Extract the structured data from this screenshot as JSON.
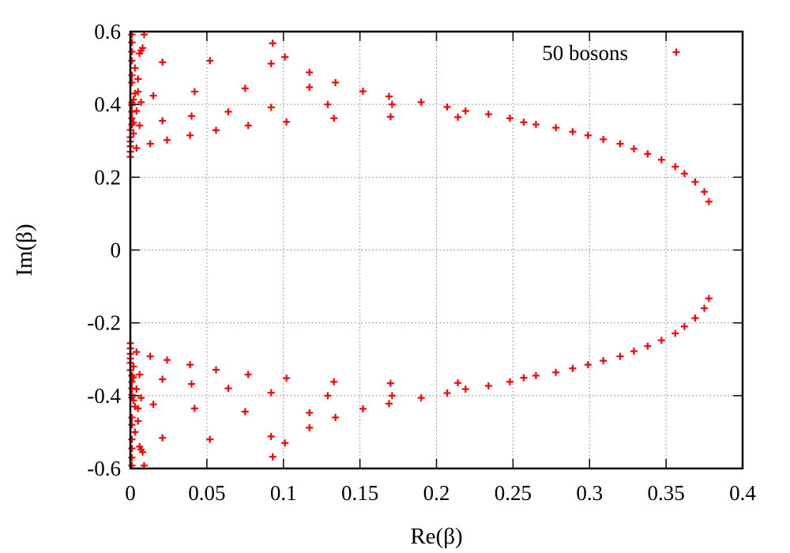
{
  "chart_data": {
    "type": "scatter",
    "xlabel": "Re(β)",
    "ylabel": "Im(β)",
    "xlim": [
      0,
      0.4
    ],
    "ylim": [
      -0.6,
      0.6
    ],
    "x_ticks": [
      "0",
      "0.05",
      "0.1",
      "0.15",
      "0.2",
      "0.25",
      "0.3",
      "0.35",
      "0.4"
    ],
    "x_tick_values": [
      0,
      0.05,
      0.1,
      0.15,
      0.2,
      0.25,
      0.3,
      0.35,
      0.4
    ],
    "y_ticks": [
      "-0.6",
      "-0.4",
      "-0.2",
      "0",
      "0.2",
      "0.4",
      "0.6"
    ],
    "y_tick_values": [
      -0.6,
      -0.4,
      -0.2,
      0,
      0.2,
      0.4,
      0.6
    ],
    "grid": true,
    "legend_position": "top-right",
    "marker": "plus",
    "color": "#ff0000",
    "series": [
      {
        "name": "50 bosons",
        "symmetric_about_x_axis": true,
        "points": [
          [
            0.378,
            0.133
          ],
          [
            0.375,
            0.16
          ],
          [
            0.369,
            0.187
          ],
          [
            0.362,
            0.21
          ],
          [
            0.356,
            0.229
          ],
          [
            0.347,
            0.248
          ],
          [
            0.338,
            0.264
          ],
          [
            0.329,
            0.278
          ],
          [
            0.32,
            0.292
          ],
          [
            0.309,
            0.304
          ],
          [
            0.299,
            0.315
          ],
          [
            0.289,
            0.325
          ],
          [
            0.278,
            0.336
          ],
          [
            0.265,
            0.345
          ],
          [
            0.257,
            0.351
          ],
          [
            0.248,
            0.362
          ],
          [
            0.234,
            0.373
          ],
          [
            0.219,
            0.382
          ],
          [
            0.214,
            0.365
          ],
          [
            0.207,
            0.393
          ],
          [
            0.19,
            0.406
          ],
          [
            0.171,
            0.4
          ],
          [
            0.17,
            0.366
          ],
          [
            0.169,
            0.422
          ],
          [
            0.152,
            0.436
          ],
          [
            0.134,
            0.46
          ],
          [
            0.133,
            0.362
          ],
          [
            0.129,
            0.4
          ],
          [
            0.117,
            0.447
          ],
          [
            0.117,
            0.488
          ],
          [
            0.102,
            0.352
          ],
          [
            0.101,
            0.53
          ],
          [
            0.093,
            0.568
          ],
          [
            0.092,
            0.512
          ],
          [
            0.092,
            0.392
          ],
          [
            0.077,
            0.342
          ],
          [
            0.075,
            0.444
          ],
          [
            0.064,
            0.38
          ],
          [
            0.056,
            0.329
          ],
          [
            0.052,
            0.52
          ],
          [
            0.042,
            0.435
          ],
          [
            0.04,
            0.368
          ],
          [
            0.039,
            0.315
          ],
          [
            0.024,
            0.302
          ],
          [
            0.021,
            0.355
          ],
          [
            0.021,
            0.516
          ],
          [
            0.015,
            0.424
          ],
          [
            0.013,
            0.292
          ],
          [
            0.009,
            0.592
          ],
          [
            0.008,
            0.555
          ],
          [
            0.007,
            0.548
          ],
          [
            0.006,
            0.54
          ],
          [
            0.007,
            0.406
          ],
          [
            0.006,
            0.342
          ],
          [
            0.005,
            0.47
          ],
          [
            0.005,
            0.435
          ],
          [
            0.004,
            0.382
          ],
          [
            0.004,
            0.28
          ],
          [
            0.003,
            0.5
          ],
          [
            0.003,
            0.43
          ],
          [
            0.002,
            0.413
          ],
          [
            0.002,
            0.35
          ],
          [
            0.002,
            0.32
          ],
          [
            0.001,
            0.592
          ],
          [
            0.001,
            0.57
          ],
          [
            0.001,
            0.545
          ],
          [
            0.001,
            0.52
          ],
          [
            0.001,
            0.48
          ],
          [
            0.001,
            0.46
          ],
          [
            0.001,
            0.405
          ],
          [
            0.001,
            0.398
          ],
          [
            0.001,
            0.38
          ],
          [
            0.001,
            0.362
          ],
          [
            0.001,
            0.345
          ],
          [
            0.0,
            0.33
          ],
          [
            0.0,
            0.31
          ],
          [
            0.0,
            0.298
          ],
          [
            0.0,
            0.285
          ],
          [
            0.0,
            0.27
          ],
          [
            0.0,
            0.256
          ]
        ]
      }
    ]
  }
}
